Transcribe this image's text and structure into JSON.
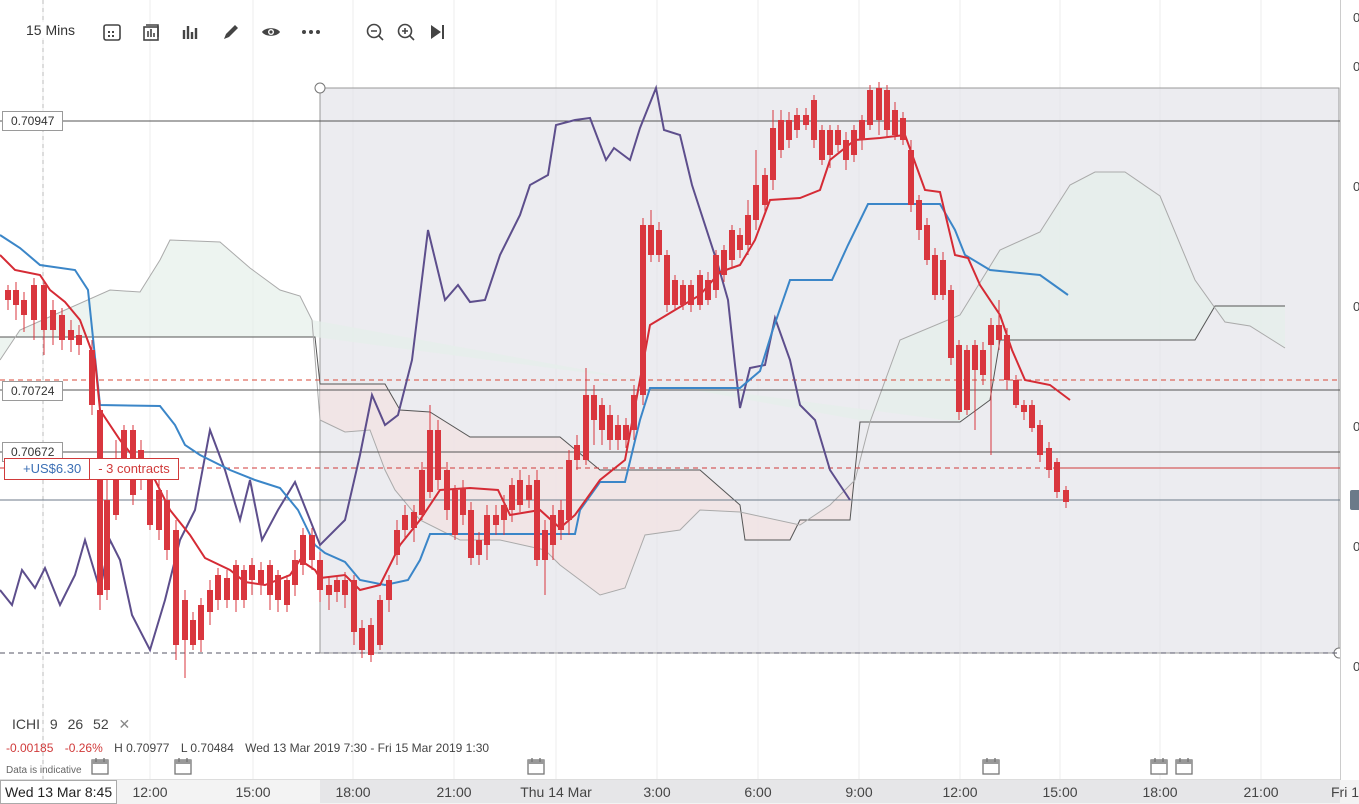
{
  "toolbar": {
    "interval": "15 Mins",
    "icons": [
      "chart-type-icon",
      "bar-style-icon",
      "indicators-icon",
      "draw-icon",
      "visibility-icon",
      "more-icon",
      "zoom-out-icon",
      "zoom-in-icon",
      "skip-forward-icon"
    ]
  },
  "price_tags": {
    "level_1": "0.70947",
    "level_2": "0.70724",
    "level_3": "0.70672"
  },
  "position": {
    "pnl": "+US$6.30",
    "contracts": "- 3 contracts"
  },
  "indicator": {
    "name": "ICHI",
    "p1": "9",
    "p2": "26",
    "p3": "52",
    "close": "✕"
  },
  "stats": {
    "change": "-0.00185",
    "change_pct": "-0.26%",
    "high": "H 0.70977",
    "low": "L 0.70484",
    "range": "Wed 13 Mar 2019 7:30 - Fri 15 Mar 2019 1:30"
  },
  "disclaimer": "Data is indicative",
  "time_axis": {
    "cursor_date": "Wed 13 Mar 8:45",
    "labels": [
      "12:00",
      "15:00",
      "18:00",
      "21:00",
      "Thu 14 Mar",
      "3:00",
      "6:00",
      "9:00",
      "12:00",
      "15:00",
      "18:00",
      "21:00",
      "Fri 1"
    ]
  },
  "right_axis_labels": [
    "0",
    "0",
    "0",
    "0",
    "0",
    "0",
    "0"
  ],
  "colors": {
    "up": "#4caa4a",
    "down": "#d9363e",
    "conversion": "#d52b35",
    "base": "#3b86c8",
    "lagging": "#5d4e8c",
    "span": "#888888",
    "bull_cloud": "#e6f0ea",
    "bear_cloud": "#f3e3e4"
  },
  "chart_data": {
    "type": "candlestick",
    "y_levels_marked": [
      0.70947,
      0.70724,
      0.70672
    ],
    "high": 0.70977,
    "low": 0.70484,
    "change": -0.00185
  }
}
